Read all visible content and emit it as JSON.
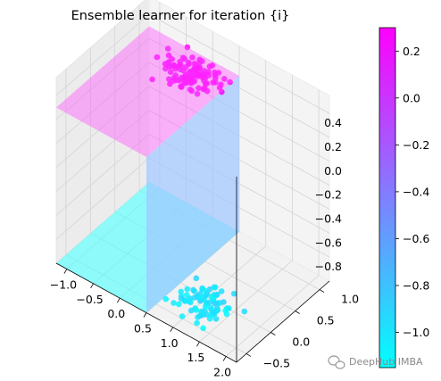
{
  "chart_data": {
    "type": "scatter",
    "title": "Ensemble learner for iteration {i}",
    "xlabel": "",
    "ylabel": "",
    "zlabel": "",
    "x_ticks": [
      "−1.0",
      "−0.5",
      "0.0",
      "0.5",
      "1.0",
      "1.5",
      "2.0"
    ],
    "y_ticks": [
      "−0.5",
      "0.0",
      "0.5",
      "1.0"
    ],
    "z_ticks": [
      "0.4",
      "0.2",
      "0.0",
      "−0.2",
      "−0.4",
      "−0.6",
      "−0.8"
    ],
    "xlim": [
      -1.2,
      2.2
    ],
    "ylim": [
      -0.7,
      1.2
    ],
    "zlim": [
      -1.0,
      0.55
    ],
    "colormap": "cool",
    "colorbar": {
      "min": -1.15,
      "max": 0.3,
      "ticks": [
        "0.2",
        "0.0",
        "−0.2",
        "−0.4",
        "−0.6",
        "−0.8",
        "−1.0"
      ],
      "tick_values": [
        0.2,
        0.0,
        -0.2,
        -0.4,
        -0.6,
        -0.8,
        -1.0
      ]
    },
    "surface": {
      "split_x": 0.5,
      "left_value": -1.0,
      "right_value": 0.3,
      "left_color": "#50ffff",
      "right_color": "#ff50ff",
      "wall_color": "#9fc6ff"
    },
    "clusters": [
      {
        "name": "",
        "center": [
          1.0,
          -0.1
        ],
        "spread": [
          0.75,
          0.45
        ],
        "value": -1.0,
        "count": 80
      },
      {
        "name": "",
        "center": [
          -0.1,
          0.85
        ],
        "spread": [
          0.75,
          0.45
        ],
        "value": 0.3,
        "count": 110
      }
    ],
    "grid": true,
    "legend": "none"
  },
  "watermark": "DeepHub IMBA"
}
